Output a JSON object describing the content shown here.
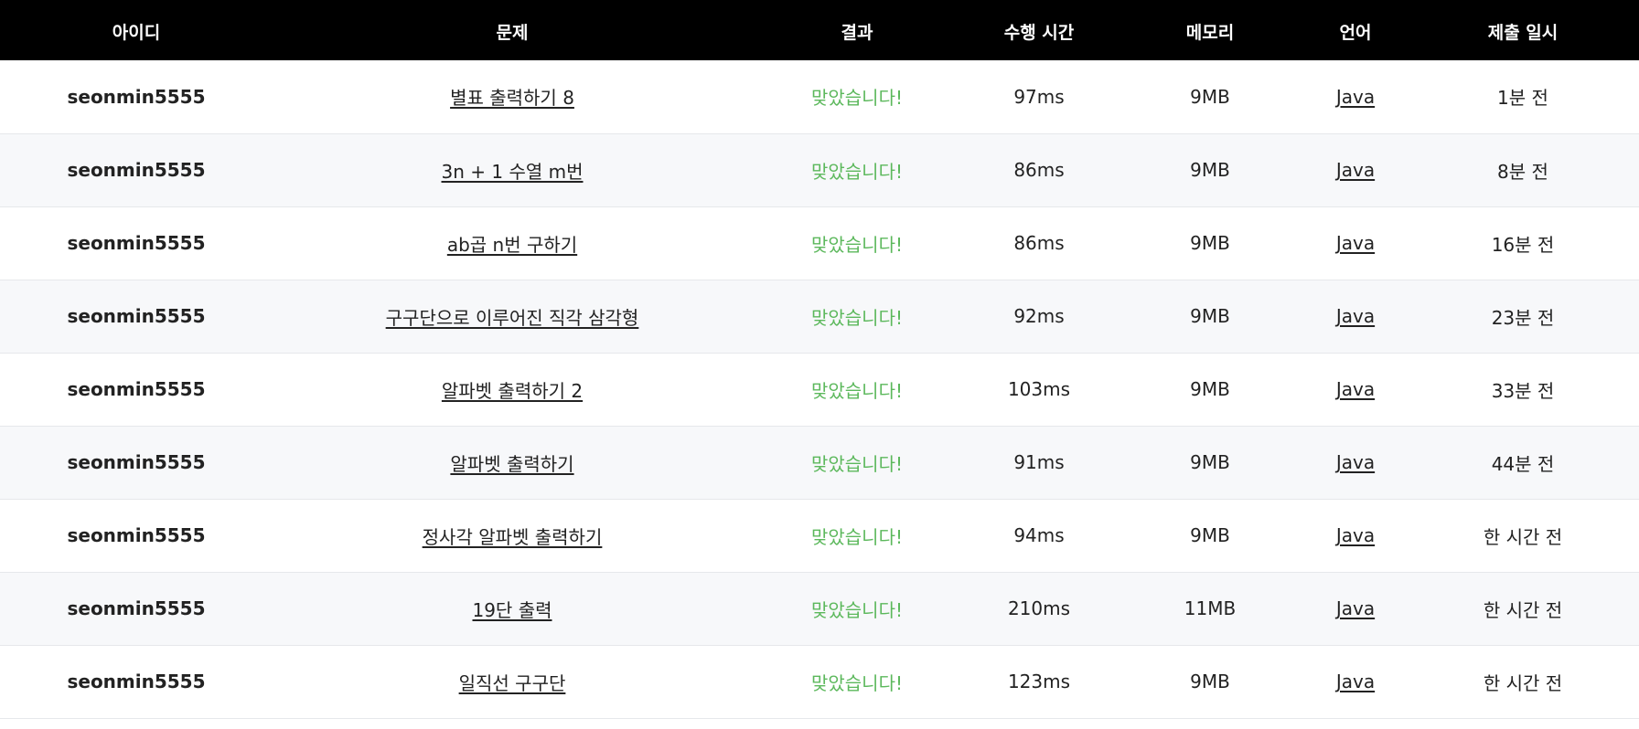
{
  "header": {
    "id": "아이디",
    "problem": "문제",
    "result": "결과",
    "time": "수행 시간",
    "memory": "메모리",
    "language": "언어",
    "submitted": "제출 일시"
  },
  "colors": {
    "header_bg": "#000000",
    "accepted": "#5cb85c",
    "stripe": "#f7f8fa"
  },
  "rows": [
    {
      "id": "seonmin5555",
      "problem": "별표 출력하기 8",
      "result": "맞았습니다!",
      "time": "97ms",
      "memory": "9MB",
      "language": "Java",
      "submitted": "1분 전"
    },
    {
      "id": "seonmin5555",
      "problem": "3n + 1 수열 m번",
      "result": "맞았습니다!",
      "time": "86ms",
      "memory": "9MB",
      "language": "Java",
      "submitted": "8분 전"
    },
    {
      "id": "seonmin5555",
      "problem": "ab곱 n번 구하기",
      "result": "맞았습니다!",
      "time": "86ms",
      "memory": "9MB",
      "language": "Java",
      "submitted": "16분 전"
    },
    {
      "id": "seonmin5555",
      "problem": "구구단으로 이루어진 직각 삼각형",
      "result": "맞았습니다!",
      "time": "92ms",
      "memory": "9MB",
      "language": "Java",
      "submitted": "23분 전"
    },
    {
      "id": "seonmin5555",
      "problem": "알파벳 출력하기 2",
      "result": "맞았습니다!",
      "time": "103ms",
      "memory": "9MB",
      "language": "Java",
      "submitted": "33분 전"
    },
    {
      "id": "seonmin5555",
      "problem": "알파벳 출력하기",
      "result": "맞았습니다!",
      "time": "91ms",
      "memory": "9MB",
      "language": "Java",
      "submitted": "44분 전"
    },
    {
      "id": "seonmin5555",
      "problem": "정사각 알파벳 출력하기",
      "result": "맞았습니다!",
      "time": "94ms",
      "memory": "9MB",
      "language": "Java",
      "submitted": "한 시간 전"
    },
    {
      "id": "seonmin5555",
      "problem": "19단 출력",
      "result": "맞았습니다!",
      "time": "210ms",
      "memory": "11MB",
      "language": "Java",
      "submitted": "한 시간 전"
    },
    {
      "id": "seonmin5555",
      "problem": "일직선 구구단",
      "result": "맞았습니다!",
      "time": "123ms",
      "memory": "9MB",
      "language": "Java",
      "submitted": "한 시간 전"
    }
  ]
}
